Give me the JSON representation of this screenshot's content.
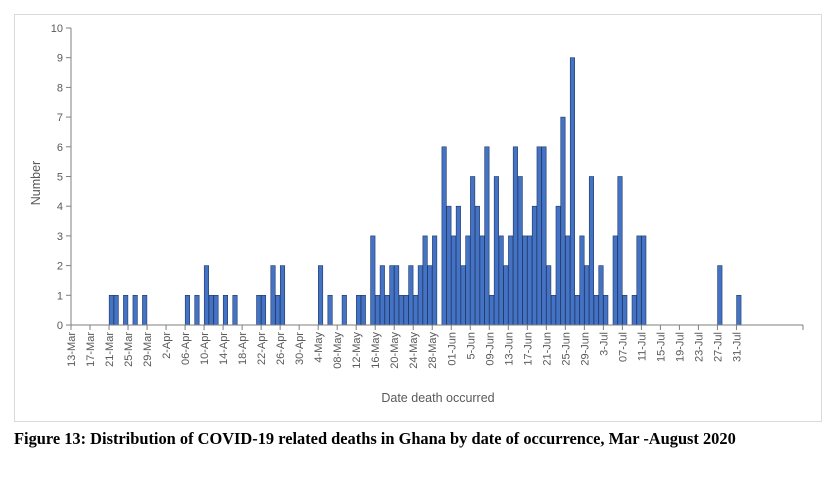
{
  "caption": "Figure 13: Distribution of COVID-19 related deaths in Ghana by date of occurrence, Mar -August 2020",
  "colors": {
    "bar": "#4472c4",
    "bar_edge": "#1f3864",
    "axis": "#7f7f7f",
    "text": "#595959"
  },
  "chart_data": {
    "type": "bar",
    "title": "",
    "xlabel": "Date death occurred",
    "ylabel": "Number",
    "ylim": [
      0,
      10
    ],
    "yticks": [
      0,
      1,
      2,
      3,
      4,
      5,
      6,
      7,
      8,
      9,
      10
    ],
    "grid": false,
    "legend": "none",
    "x_start": "13-Mar",
    "x_end": "3-Aug",
    "xtick_labels": [
      "13-Mar",
      "17-Mar",
      "21-Mar",
      "25-Mar",
      "29-Mar",
      "2-Apr",
      "06-Apr",
      "10-Apr",
      "14-Apr",
      "18-Apr",
      "22-Apr",
      "26-Apr",
      "30-Apr",
      "4-May",
      "08-May",
      "12-May",
      "16-May",
      "20-May",
      "24-May",
      "28-May",
      "01-Jun",
      "5-Jun",
      "09-Jun",
      "13-Jun",
      "17-Jun",
      "21-Jun",
      "25-Jun",
      "29-Jun",
      "3-Jul",
      "07-Jul",
      "11-Jul",
      "15-Jul",
      "19-Jul",
      "23-Jul",
      "27-Jul",
      "31-Jul"
    ],
    "values": [
      0,
      0,
      0,
      0,
      0,
      0,
      0,
      0,
      1,
      1,
      0,
      1,
      0,
      1,
      0,
      1,
      0,
      0,
      0,
      0,
      0,
      0,
      0,
      0,
      1,
      0,
      1,
      0,
      2,
      1,
      1,
      0,
      1,
      0,
      1,
      0,
      0,
      0,
      0,
      1,
      1,
      0,
      2,
      1,
      2,
      0,
      0,
      0,
      0,
      0,
      0,
      0,
      2,
      0,
      1,
      0,
      0,
      1,
      0,
      0,
      1,
      1,
      0,
      3,
      1,
      2,
      1,
      2,
      2,
      1,
      1,
      2,
      1,
      2,
      3,
      2,
      3,
      0,
      6,
      4,
      3,
      4,
      2,
      3,
      5,
      4,
      3,
      6,
      1,
      5,
      3,
      2,
      3,
      6,
      5,
      3,
      3,
      4,
      6,
      6,
      2,
      1,
      4,
      7,
      3,
      9,
      1,
      3,
      2,
      5,
      1,
      2,
      1,
      0,
      3,
      5,
      1,
      0,
      1,
      3,
      3,
      0,
      0,
      0,
      0,
      0,
      0,
      0,
      0,
      0,
      0,
      0,
      0,
      0,
      0,
      0,
      2,
      0,
      0,
      0,
      1,
      0,
      0,
      0,
      0,
      0,
      0,
      0,
      0,
      0,
      0,
      0,
      0,
      0
    ]
  }
}
